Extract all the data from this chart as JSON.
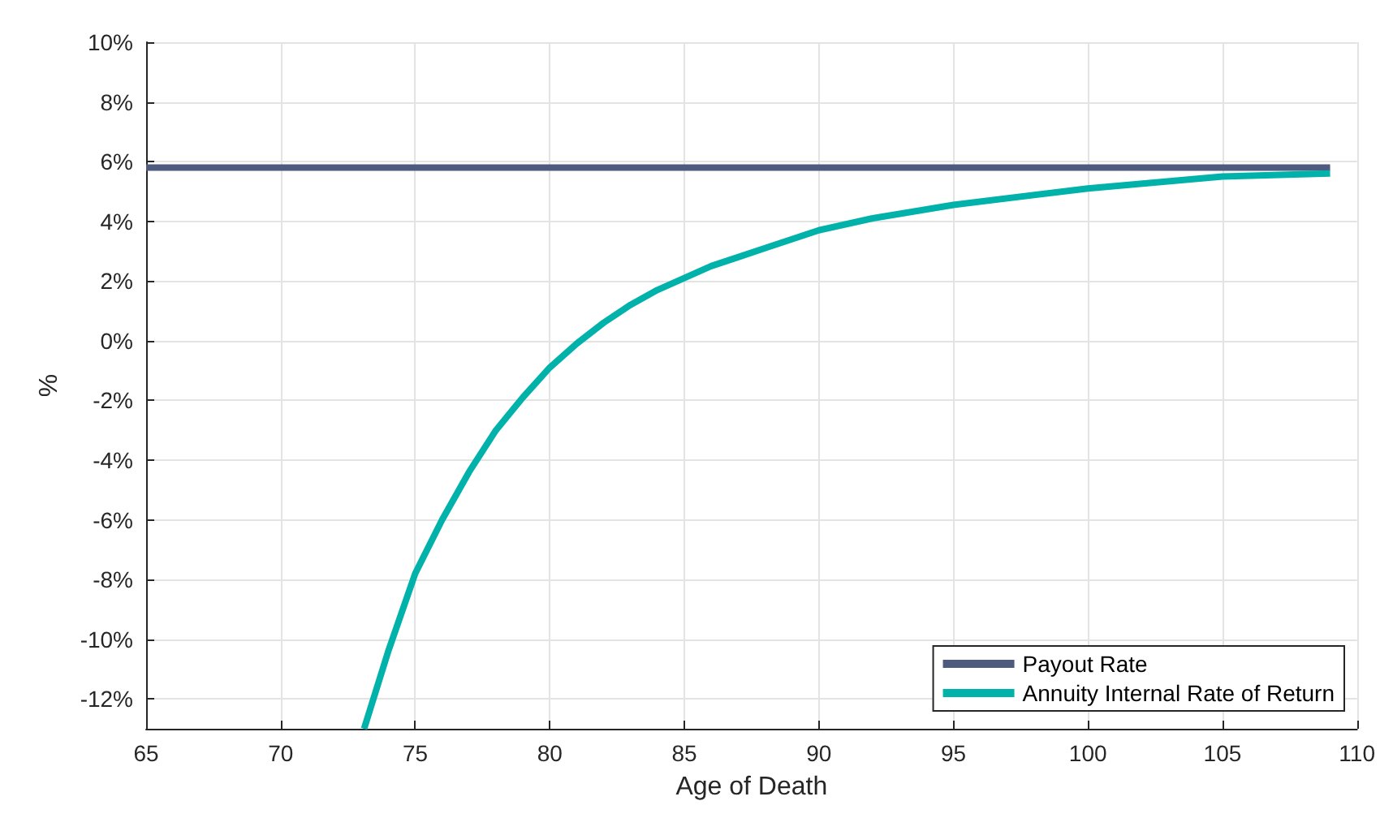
{
  "chart_data": {
    "type": "line",
    "xlabel": "Age of Death",
    "ylabel": "%",
    "xlim": [
      65,
      110
    ],
    "xticks": [
      65,
      70,
      75,
      80,
      85,
      90,
      95,
      100,
      105,
      110
    ],
    "ylim": [
      -13,
      10
    ],
    "yticks": [
      {
        "value": 10,
        "label": "10%"
      },
      {
        "value": 8,
        "label": "8%"
      },
      {
        "value": 6,
        "label": "6%"
      },
      {
        "value": 4,
        "label": "4%"
      },
      {
        "value": 2,
        "label": "2%"
      },
      {
        "value": 0,
        "label": "0%"
      },
      {
        "value": -2,
        "label": "-2%"
      },
      {
        "value": -4,
        "label": "-4%"
      },
      {
        "value": -6,
        "label": "-6%"
      },
      {
        "value": -8,
        "label": "-8%"
      },
      {
        "value": -10,
        "label": "-10%"
      },
      {
        "value": -12,
        "label": "-12%"
      }
    ],
    "grid": true,
    "legend": "bottom right",
    "marker": "none",
    "line_style": "solid",
    "series": [
      {
        "name": "Payout Rate",
        "color": "#4e5a7e",
        "x": [
          65,
          109
        ],
        "values": [
          5.8,
          5.8
        ]
      },
      {
        "name": "Annuity Internal Rate of Return",
        "color": "#00b2a9",
        "x": [
          73.1,
          74,
          75,
          76,
          77,
          78,
          79,
          80,
          81,
          82,
          83,
          84,
          85,
          86,
          87,
          88,
          89,
          90,
          92,
          95,
          100,
          105,
          109
        ],
        "values": [
          -13,
          -10.4,
          -7.8,
          -6,
          -4.4,
          -3,
          -1.9,
          -0.9,
          -0.1,
          0.6,
          1.2,
          1.7,
          2.1,
          2.5,
          2.8,
          3.1,
          3.4,
          3.7,
          4.1,
          4.55,
          5.1,
          5.5,
          5.6
        ]
      }
    ]
  }
}
